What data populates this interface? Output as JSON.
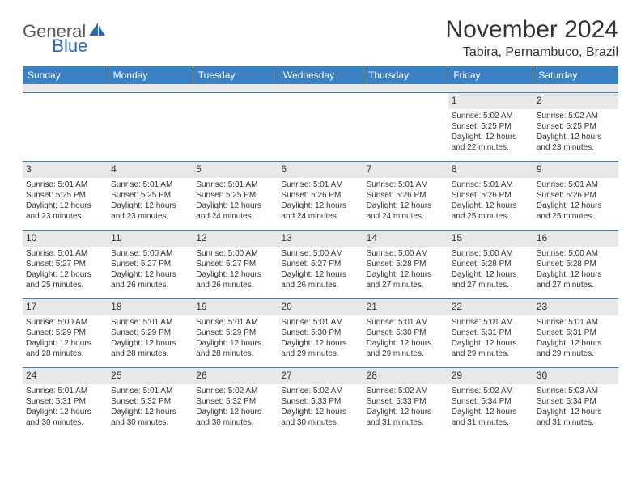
{
  "brand": {
    "general": "General",
    "blue": "Blue"
  },
  "title": "November 2024",
  "location": "Tabira, Pernambuco, Brazil",
  "colors": {
    "header_bg": "#3b82c4",
    "header_text": "#ffffff",
    "daynum_bg": "#e8e8e8",
    "border": "#3b82c4",
    "text": "#333333",
    "logo_gray": "#555555",
    "logo_blue": "#2a6bb0",
    "page_bg": "#ffffff"
  },
  "day_names": [
    "Sunday",
    "Monday",
    "Tuesday",
    "Wednesday",
    "Thursday",
    "Friday",
    "Saturday"
  ],
  "weeks": [
    [
      {
        "n": "",
        "sr": "",
        "ss": "",
        "dl": ""
      },
      {
        "n": "",
        "sr": "",
        "ss": "",
        "dl": ""
      },
      {
        "n": "",
        "sr": "",
        "ss": "",
        "dl": ""
      },
      {
        "n": "",
        "sr": "",
        "ss": "",
        "dl": ""
      },
      {
        "n": "",
        "sr": "",
        "ss": "",
        "dl": ""
      },
      {
        "n": "1",
        "sr": "Sunrise: 5:02 AM",
        "ss": "Sunset: 5:25 PM",
        "dl": "Daylight: 12 hours and 22 minutes."
      },
      {
        "n": "2",
        "sr": "Sunrise: 5:02 AM",
        "ss": "Sunset: 5:25 PM",
        "dl": "Daylight: 12 hours and 23 minutes."
      }
    ],
    [
      {
        "n": "3",
        "sr": "Sunrise: 5:01 AM",
        "ss": "Sunset: 5:25 PM",
        "dl": "Daylight: 12 hours and 23 minutes."
      },
      {
        "n": "4",
        "sr": "Sunrise: 5:01 AM",
        "ss": "Sunset: 5:25 PM",
        "dl": "Daylight: 12 hours and 23 minutes."
      },
      {
        "n": "5",
        "sr": "Sunrise: 5:01 AM",
        "ss": "Sunset: 5:25 PM",
        "dl": "Daylight: 12 hours and 24 minutes."
      },
      {
        "n": "6",
        "sr": "Sunrise: 5:01 AM",
        "ss": "Sunset: 5:26 PM",
        "dl": "Daylight: 12 hours and 24 minutes."
      },
      {
        "n": "7",
        "sr": "Sunrise: 5:01 AM",
        "ss": "Sunset: 5:26 PM",
        "dl": "Daylight: 12 hours and 24 minutes."
      },
      {
        "n": "8",
        "sr": "Sunrise: 5:01 AM",
        "ss": "Sunset: 5:26 PM",
        "dl": "Daylight: 12 hours and 25 minutes."
      },
      {
        "n": "9",
        "sr": "Sunrise: 5:01 AM",
        "ss": "Sunset: 5:26 PM",
        "dl": "Daylight: 12 hours and 25 minutes."
      }
    ],
    [
      {
        "n": "10",
        "sr": "Sunrise: 5:01 AM",
        "ss": "Sunset: 5:27 PM",
        "dl": "Daylight: 12 hours and 25 minutes."
      },
      {
        "n": "11",
        "sr": "Sunrise: 5:00 AM",
        "ss": "Sunset: 5:27 PM",
        "dl": "Daylight: 12 hours and 26 minutes."
      },
      {
        "n": "12",
        "sr": "Sunrise: 5:00 AM",
        "ss": "Sunset: 5:27 PM",
        "dl": "Daylight: 12 hours and 26 minutes."
      },
      {
        "n": "13",
        "sr": "Sunrise: 5:00 AM",
        "ss": "Sunset: 5:27 PM",
        "dl": "Daylight: 12 hours and 26 minutes."
      },
      {
        "n": "14",
        "sr": "Sunrise: 5:00 AM",
        "ss": "Sunset: 5:28 PM",
        "dl": "Daylight: 12 hours and 27 minutes."
      },
      {
        "n": "15",
        "sr": "Sunrise: 5:00 AM",
        "ss": "Sunset: 5:28 PM",
        "dl": "Daylight: 12 hours and 27 minutes."
      },
      {
        "n": "16",
        "sr": "Sunrise: 5:00 AM",
        "ss": "Sunset: 5:28 PM",
        "dl": "Daylight: 12 hours and 27 minutes."
      }
    ],
    [
      {
        "n": "17",
        "sr": "Sunrise: 5:00 AM",
        "ss": "Sunset: 5:29 PM",
        "dl": "Daylight: 12 hours and 28 minutes."
      },
      {
        "n": "18",
        "sr": "Sunrise: 5:01 AM",
        "ss": "Sunset: 5:29 PM",
        "dl": "Daylight: 12 hours and 28 minutes."
      },
      {
        "n": "19",
        "sr": "Sunrise: 5:01 AM",
        "ss": "Sunset: 5:29 PM",
        "dl": "Daylight: 12 hours and 28 minutes."
      },
      {
        "n": "20",
        "sr": "Sunrise: 5:01 AM",
        "ss": "Sunset: 5:30 PM",
        "dl": "Daylight: 12 hours and 29 minutes."
      },
      {
        "n": "21",
        "sr": "Sunrise: 5:01 AM",
        "ss": "Sunset: 5:30 PM",
        "dl": "Daylight: 12 hours and 29 minutes."
      },
      {
        "n": "22",
        "sr": "Sunrise: 5:01 AM",
        "ss": "Sunset: 5:31 PM",
        "dl": "Daylight: 12 hours and 29 minutes."
      },
      {
        "n": "23",
        "sr": "Sunrise: 5:01 AM",
        "ss": "Sunset: 5:31 PM",
        "dl": "Daylight: 12 hours and 29 minutes."
      }
    ],
    [
      {
        "n": "24",
        "sr": "Sunrise: 5:01 AM",
        "ss": "Sunset: 5:31 PM",
        "dl": "Daylight: 12 hours and 30 minutes."
      },
      {
        "n": "25",
        "sr": "Sunrise: 5:01 AM",
        "ss": "Sunset: 5:32 PM",
        "dl": "Daylight: 12 hours and 30 minutes."
      },
      {
        "n": "26",
        "sr": "Sunrise: 5:02 AM",
        "ss": "Sunset: 5:32 PM",
        "dl": "Daylight: 12 hours and 30 minutes."
      },
      {
        "n": "27",
        "sr": "Sunrise: 5:02 AM",
        "ss": "Sunset: 5:33 PM",
        "dl": "Daylight: 12 hours and 30 minutes."
      },
      {
        "n": "28",
        "sr": "Sunrise: 5:02 AM",
        "ss": "Sunset: 5:33 PM",
        "dl": "Daylight: 12 hours and 31 minutes."
      },
      {
        "n": "29",
        "sr": "Sunrise: 5:02 AM",
        "ss": "Sunset: 5:34 PM",
        "dl": "Daylight: 12 hours and 31 minutes."
      },
      {
        "n": "30",
        "sr": "Sunrise: 5:03 AM",
        "ss": "Sunset: 5:34 PM",
        "dl": "Daylight: 12 hours and 31 minutes."
      }
    ]
  ]
}
